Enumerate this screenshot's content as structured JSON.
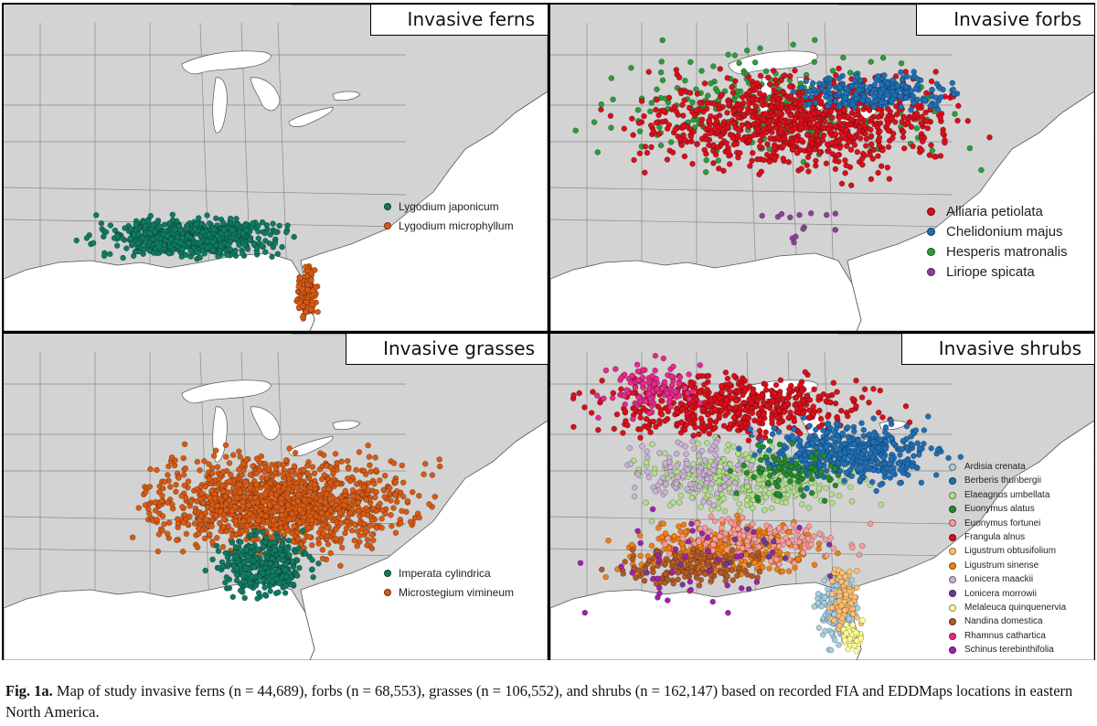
{
  "panels": [
    {
      "id": "ferns",
      "title": "Invasive ferns",
      "legend": [
        {
          "label": "Lygodium japonicum",
          "color": "#0f7a62"
        },
        {
          "label": "Lygodium microphyllum",
          "color": "#d75a14"
        }
      ]
    },
    {
      "id": "forbs",
      "title": "Invasive forbs",
      "legend": [
        {
          "label": "Alliaria petiolata",
          "color": "#d7101a"
        },
        {
          "label": "Chelidonium majus",
          "color": "#1f6fb5"
        },
        {
          "label": "Hesperis matronalis",
          "color": "#2e9b3a"
        },
        {
          "label": "Liriope spicata",
          "color": "#8e3f9a"
        }
      ]
    },
    {
      "id": "grasses",
      "title": "Invasive grasses",
      "legend": [
        {
          "label": "Imperata cylindrica",
          "color": "#0f7a62"
        },
        {
          "label": "Microstegium vimineum",
          "color": "#d75a14"
        }
      ]
    },
    {
      "id": "shrubs",
      "title": "Invasive shrubs",
      "legend": [
        {
          "label": "Ardisia crenata",
          "color": "#a6cee3"
        },
        {
          "label": "Berberis thunbergii",
          "color": "#1f6fb5"
        },
        {
          "label": "Elaeagnus umbellata",
          "color": "#b2df8a"
        },
        {
          "label": "Euonymus alatus",
          "color": "#238b2e"
        },
        {
          "label": "Euonymus fortunei",
          "color": "#fb9a99"
        },
        {
          "label": "Frangula alnus",
          "color": "#d7101a"
        },
        {
          "label": "Ligustrum obtusifolium",
          "color": "#fdbf6f"
        },
        {
          "label": "Ligustrum sinense",
          "color": "#f07f12"
        },
        {
          "label": "Lonicera maackii",
          "color": "#cab2d6"
        },
        {
          "label": "Lonicera morrowii",
          "color": "#6a3d9a"
        },
        {
          "label": "Melaleuca quinquenervia",
          "color": "#ffff99"
        },
        {
          "label": "Nandina domestica",
          "color": "#b15928"
        },
        {
          "label": "Rhamnus cathartica",
          "color": "#e7298a"
        },
        {
          "label": "Schinus terebinthifolia",
          "color": "#a020b0"
        }
      ]
    }
  ],
  "caption": {
    "label": "Fig. 1a.",
    "text": " Map of study invasive ferns (n = 44,689), forbs (n = 68,553), grasses (n = 106,552), and shrubs (n = 162,147) based on recorded FIA and EDDMaps locations in eastern North America."
  }
}
